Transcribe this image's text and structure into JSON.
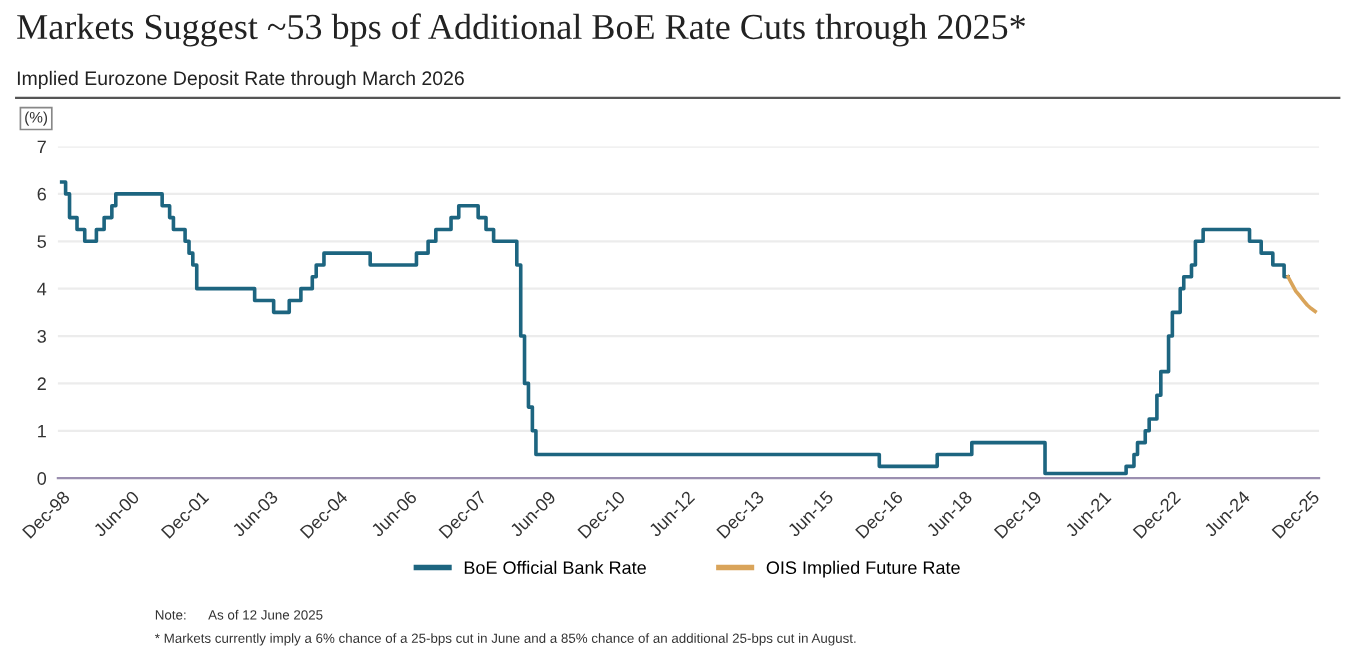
{
  "chart_data": {
    "type": "step",
    "title": "Markets Suggest ~53 bps of Additional BoE Rate Cuts through 2025*",
    "subtitle": "Implied Eurozone Deposit Rate through March 2026",
    "ylabel": "(%)",
    "series": [
      {
        "name": "BoE Official Bank Rate",
        "color": "#1d6580",
        "x": [
          "1998-12",
          "1999-01",
          "1999-02",
          "1999-04",
          "1999-06",
          "1999-09",
          "1999-11",
          "2000-01",
          "2000-02",
          "2001-02",
          "2001-04",
          "2001-05",
          "2001-08",
          "2001-09",
          "2001-10",
          "2001-11",
          "2003-02",
          "2003-07",
          "2003-11",
          "2004-02",
          "2004-05",
          "2004-06",
          "2004-08",
          "2005-08",
          "2006-08",
          "2006-11",
          "2007-01",
          "2007-05",
          "2007-07",
          "2007-12",
          "2008-02",
          "2008-04",
          "2008-10",
          "2008-11",
          "2008-12",
          "2009-01",
          "2009-02",
          "2009-03",
          "2016-08",
          "2017-11",
          "2018-08",
          "2020-03",
          "2021-12",
          "2022-02",
          "2022-03",
          "2022-05",
          "2022-06",
          "2022-08",
          "2022-09",
          "2022-11",
          "2022-12",
          "2023-02",
          "2023-03",
          "2023-05",
          "2023-06",
          "2023-08",
          "2024-08",
          "2024-11",
          "2025-02",
          "2025-05",
          "2025-06"
        ],
        "values": [
          6.25,
          6.0,
          5.5,
          5.25,
          5.0,
          5.25,
          5.5,
          5.75,
          6.0,
          5.75,
          5.5,
          5.25,
          5.0,
          4.75,
          4.5,
          4.0,
          3.75,
          3.5,
          3.75,
          4.0,
          4.25,
          4.5,
          4.75,
          4.5,
          4.75,
          5.0,
          5.25,
          5.5,
          5.75,
          5.5,
          5.25,
          5.0,
          4.5,
          3.0,
          2.0,
          1.5,
          1.0,
          0.5,
          0.25,
          0.5,
          0.75,
          0.1,
          0.25,
          0.5,
          0.75,
          1.0,
          1.25,
          1.75,
          2.25,
          3.0,
          3.5,
          4.0,
          4.25,
          4.5,
          5.0,
          5.25,
          5.0,
          4.75,
          4.5,
          4.25,
          4.25
        ]
      },
      {
        "name": "OIS Implied Future Rate",
        "type": "line",
        "color": "#d9a45a",
        "x": [
          "2025-06",
          "2025-07",
          "2025-08",
          "2025-09",
          "2025-10",
          "2025-11",
          "2025-12",
          "2026-01"
        ],
        "values": [
          4.25,
          4.1,
          3.95,
          3.85,
          3.75,
          3.65,
          3.58,
          3.52
        ]
      }
    ],
    "xlim": [
      "1998-11",
      "2026-02"
    ],
    "xticks": [
      {
        "value": "1998-12",
        "label": "Dec-98"
      },
      {
        "value": "2000-06",
        "label": "Jun-00"
      },
      {
        "value": "2001-12",
        "label": "Dec-01"
      },
      {
        "value": "2003-06",
        "label": "Jun-03"
      },
      {
        "value": "2004-12",
        "label": "Dec-04"
      },
      {
        "value": "2006-06",
        "label": "Jun-06"
      },
      {
        "value": "2007-12",
        "label": "Dec-07"
      },
      {
        "value": "2009-06",
        "label": "Jun-09"
      },
      {
        "value": "2010-12",
        "label": "Dec-10"
      },
      {
        "value": "2012-06",
        "label": "Jun-12"
      },
      {
        "value": "2013-12",
        "label": "Dec-13"
      },
      {
        "value": "2015-06",
        "label": "Jun-15"
      },
      {
        "value": "2016-12",
        "label": "Dec-16"
      },
      {
        "value": "2018-06",
        "label": "Jun-18"
      },
      {
        "value": "2019-12",
        "label": "Dec-19"
      },
      {
        "value": "2021-06",
        "label": "Jun-21"
      },
      {
        "value": "2022-12",
        "label": "Dec-22"
      },
      {
        "value": "2024-06",
        "label": "Jun-24"
      },
      {
        "value": "2025-12",
        "label": "Dec-25"
      }
    ],
    "ylim": [
      0,
      7
    ],
    "yticks": [
      0,
      1,
      2,
      3,
      4,
      5,
      6,
      7
    ],
    "grid": "y",
    "legend": "bottom",
    "annotations": [
      "Note:      As of 12 June 2025",
      "* Markets currently imply a 6% chance of a 25-bps cut in June and a 85% chance of an additional 25-bps cut in August."
    ]
  }
}
